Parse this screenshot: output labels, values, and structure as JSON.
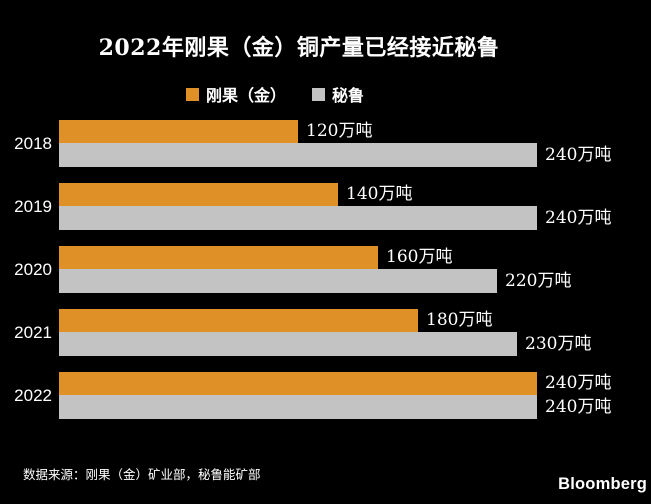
{
  "chart": {
    "title": "2022年刚果（金）铜产量已经接近秘鲁",
    "source": "数据来源：刚果（金）矿业部，秘鲁能矿部",
    "brand": "Bloomberg"
  },
  "colors": {
    "background": "#000000",
    "text": "#ffffff",
    "congo_orange": "#DF9026",
    "peru_gray": "#C3C3C3"
  },
  "chart_data": {
    "type": "bar",
    "orientation": "horizontal",
    "title": "2022年刚果（金）铜产量已经接近秘鲁",
    "categories": [
      "2018",
      "2019",
      "2020",
      "2021",
      "2022"
    ],
    "series": [
      {
        "name": "刚果（金）",
        "color": "#DF9026",
        "values": [
          120,
          140,
          160,
          180,
          240
        ],
        "labels": [
          "120万吨",
          "140万吨",
          "160万吨",
          "180万吨",
          "240万吨"
        ]
      },
      {
        "name": "秘鲁",
        "color": "#C3C3C3",
        "values": [
          240,
          240,
          220,
          230,
          240
        ],
        "labels": [
          "240万吨",
          "240万吨",
          "220万吨",
          "230万吨",
          "240万吨"
        ]
      }
    ],
    "unit": "万吨",
    "xlim": [
      0,
      245
    ],
    "grid": false,
    "legend_position": "top",
    "value_labels": "outside-end"
  }
}
